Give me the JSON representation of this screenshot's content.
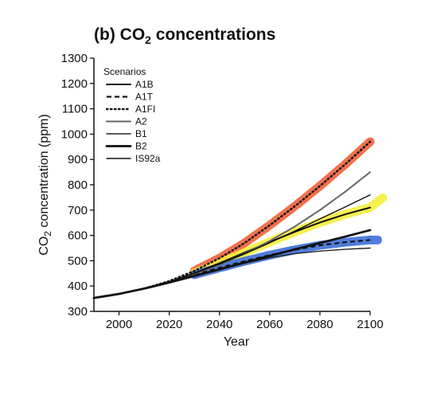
{
  "chart_data": {
    "type": "line",
    "title_prefix": "(b) CO",
    "title_subscript": "2",
    "title_suffix": " concentrations",
    "xlabel": "Year",
    "ylabel_prefix": "CO",
    "ylabel_subscript": "2",
    "ylabel_suffix": " concentration (ppm)",
    "xlim": [
      1990,
      2100
    ],
    "ylim": [
      300,
      1300
    ],
    "xticks": [
      "2000",
      "2020",
      "2040",
      "2060",
      "2080",
      "2100"
    ],
    "yticks": [
      "300",
      "400",
      "500",
      "600",
      "700",
      "800",
      "900",
      "1000",
      "1100",
      "1200",
      "1300"
    ],
    "legend_title": "Scenarios",
    "legend_position": "top-left",
    "grid": false,
    "x": [
      1990,
      2000,
      2010,
      2020,
      2030,
      2040,
      2050,
      2060,
      2070,
      2080,
      2090,
      2100
    ],
    "series": [
      {
        "name": "A1B",
        "style": "solid",
        "color": "#111111",
        "values": [
          353,
          369,
          390,
          417,
          451,
          490,
          532,
          574,
          614,
          651,
          683,
          710
        ]
      },
      {
        "name": "A1T",
        "style": "dashed",
        "color": "#111111",
        "values": [
          353,
          369,
          390,
          417,
          445,
          472,
          498,
          522,
          543,
          561,
          573,
          582
        ]
      },
      {
        "name": "A1FI",
        "style": "dotted",
        "color": "#111111",
        "values": [
          353,
          369,
          390,
          420,
          460,
          510,
          570,
          640,
          715,
          795,
          880,
          970
        ]
      },
      {
        "name": "A2",
        "style": "solid-gray",
        "color": "#666666",
        "values": [
          353,
          369,
          390,
          416,
          448,
          485,
          528,
          578,
          635,
          700,
          772,
          850
        ]
      },
      {
        "name": "B1",
        "style": "solid-thin",
        "color": "#222222",
        "values": [
          353,
          369,
          390,
          415,
          440,
          465,
          490,
          512,
          528,
          538,
          545,
          550
        ]
      },
      {
        "name": "B2",
        "style": "solid-thick",
        "color": "#111111",
        "values": [
          353,
          369,
          390,
          414,
          440,
          466,
          493,
          519,
          545,
          570,
          595,
          621
        ]
      },
      {
        "name": "IS92a",
        "style": "solid-thin",
        "color": "#111111",
        "values": [
          353,
          369,
          390,
          417,
          450,
          487,
          527,
          571,
          617,
          665,
          712,
          760
        ]
      }
    ],
    "highlights": [
      {
        "color": "#f0623a",
        "follows": "A1FI",
        "x_from": 2030
      },
      {
        "color": "#f5ee3a",
        "follows": "A1B",
        "x_from": 2030,
        "extend_to": [
          2105,
          748
        ]
      },
      {
        "color": "#3d6fd8",
        "follows": "A1T",
        "x_from": 2030,
        "extend_to": [
          2103,
          582
        ]
      }
    ]
  }
}
